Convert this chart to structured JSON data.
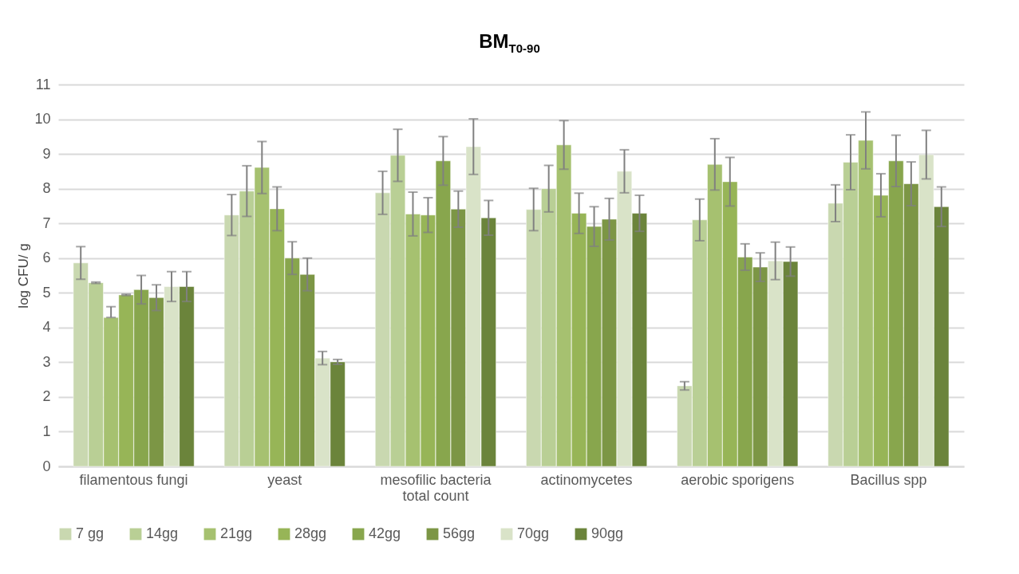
{
  "chart_data": {
    "type": "bar",
    "title": "BM$_{T0-90}$",
    "ylabel": "log CFU/ g",
    "categories": [
      "filamentous fungi",
      "yeast",
      "mesofilic bacteria total count",
      "actinomycetes",
      "aerobic sporigens",
      "Bacillus spp"
    ],
    "ylim": [
      0,
      11
    ],
    "yticks": [
      0,
      1,
      2,
      3,
      4,
      5,
      6,
      7,
      8,
      9,
      10,
      11
    ],
    "grid": "y",
    "legend": "bottom",
    "series": [
      {
        "name": "7 gg",
        "color": "#c9d8b0",
        "values": [
          5.86,
          7.24,
          7.88,
          7.4,
          2.32,
          7.58
        ],
        "errors": [
          0.47,
          0.59,
          0.62,
          0.61,
          0.12,
          0.53
        ]
      },
      {
        "name": "14gg",
        "color": "#b9cf95",
        "values": [
          5.29,
          7.93,
          8.96,
          8.0,
          7.1,
          8.76
        ],
        "errors": [
          0.02,
          0.73,
          0.75,
          0.67,
          0.6,
          0.79
        ]
      },
      {
        "name": "21gg",
        "color": "#a6c170",
        "values": [
          4.29,
          8.61,
          7.27,
          9.26,
          8.7,
          9.39
        ],
        "errors": [
          [
            4.29,
            4.6
          ],
          0.75,
          0.63,
          0.7,
          0.74,
          0.82
        ]
      },
      {
        "name": "28gg",
        "color": "#97b557",
        "values": [
          4.94,
          7.42,
          7.24,
          7.29,
          8.2,
          7.81
        ],
        "errors": [
          0.02,
          0.63,
          0.5,
          0.58,
          0.7,
          0.62
        ]
      },
      {
        "name": "42gg",
        "color": "#88a64d",
        "values": [
          5.09,
          6.0,
          8.8,
          6.91,
          6.03,
          8.8
        ],
        "errors": [
          0.41,
          0.47,
          0.7,
          0.57,
          0.38,
          0.74
        ]
      },
      {
        "name": "56gg",
        "color": "#7c9645",
        "values": [
          4.86,
          5.53,
          7.41,
          7.12,
          5.74,
          8.14
        ],
        "errors": [
          0.37,
          0.47,
          0.52,
          0.6,
          0.41,
          0.63
        ]
      },
      {
        "name": "70gg",
        "color": "#d9e3c8",
        "values": [
          5.18,
          3.12,
          9.21,
          8.5,
          5.92,
          8.98
        ],
        "errors": [
          0.43,
          0.19,
          0.8,
          0.62,
          0.54,
          0.7
        ]
      },
      {
        "name": "90gg",
        "color": "#6b843b",
        "values": [
          5.18,
          3.01,
          7.16,
          7.29,
          5.9,
          7.48
        ],
        "errors": [
          0.43,
          0.07,
          0.5,
          0.52,
          0.42,
          0.57
        ]
      }
    ]
  }
}
